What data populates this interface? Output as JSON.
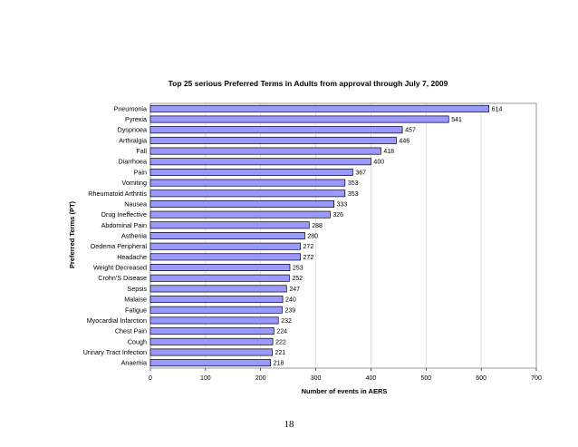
{
  "page": {
    "number": "18"
  },
  "colors": {
    "bar_fill": "#9999ff",
    "bar_stroke": "#000000",
    "grid": "#d9d9d9",
    "text": "#000000"
  },
  "chart_data": {
    "type": "bar",
    "orientation": "horizontal",
    "title": "Top 25 serious Preferred Terms in Adults from approval through July 7, 2009",
    "xlabel": "Number of events in AERS",
    "ylabel": "Preferred Terms (PT)",
    "xlim": [
      0,
      700
    ],
    "x_ticks": [
      0,
      100,
      200,
      300,
      400,
      500,
      600,
      700
    ],
    "grid": true,
    "legend": "none",
    "categories": [
      "Pneumonia",
      "Pyrexia",
      "Dyspnoea",
      "Arthralgia",
      "Fall",
      "Diarrhoea",
      "Pain",
      "Vomiting",
      "Rheumatoid Arthritis",
      "Nausea",
      "Drug Ineffective",
      "Abdominal Pain",
      "Asthenia",
      "Oedema Peripheral",
      "Headache",
      "Weight Decreased",
      "Crohn'S Disease",
      "Sepsis",
      "Malaise",
      "Fatigue",
      "Myocardial Infarction",
      "Chest Pain",
      "Cough",
      "Urinary Tract Infection",
      "Anaemia"
    ],
    "values": [
      614,
      541,
      457,
      446,
      418,
      400,
      367,
      353,
      353,
      333,
      326,
      288,
      280,
      272,
      272,
      253,
      252,
      247,
      240,
      239,
      232,
      224,
      222,
      221,
      218
    ]
  }
}
